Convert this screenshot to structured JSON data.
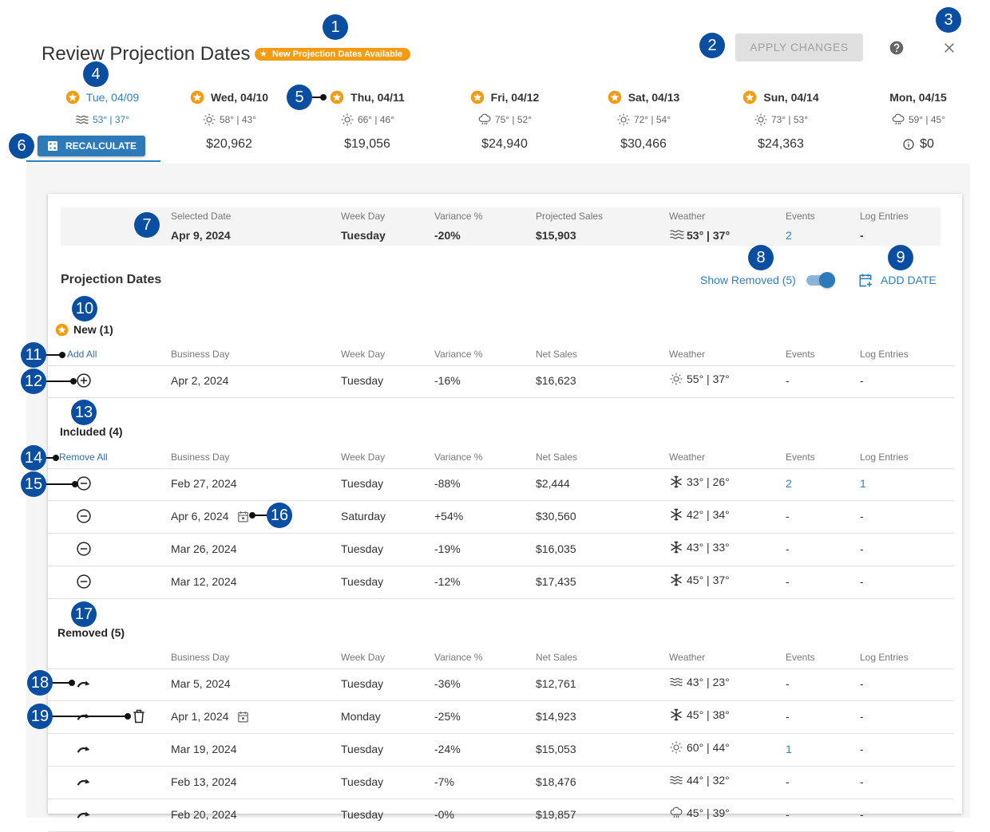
{
  "header": {
    "title": "Review Projection Dates",
    "badge": "New Projection Dates Available",
    "apply": "APPLY CHANGES"
  },
  "days": [
    {
      "label": "Tue, 04/09",
      "starred": true,
      "selected": true,
      "weather": "fog",
      "temp": "53° | 37°",
      "action": "RECALCULATE"
    },
    {
      "label": "Wed, 04/10",
      "starred": true,
      "weather": "sun",
      "temp": "58° | 43°",
      "sales": "$20,962"
    },
    {
      "label": "Thu, 04/11",
      "starred": true,
      "weather": "sun",
      "temp": "66° | 46°",
      "sales": "$19,056"
    },
    {
      "label": "Fri, 04/12",
      "starred": true,
      "weather": "rain",
      "temp": "75° | 52°",
      "sales": "$24,940"
    },
    {
      "label": "Sat, 04/13",
      "starred": true,
      "weather": "sun",
      "temp": "72° | 54°",
      "sales": "$30,466"
    },
    {
      "label": "Sun, 04/14",
      "starred": true,
      "weather": "sun",
      "temp": "73° | 53°",
      "sales": "$24,363"
    },
    {
      "label": "Mon, 04/15",
      "starred": false,
      "weather": "rain",
      "temp": "59° | 45°",
      "sales": "$0",
      "info": true
    }
  ],
  "summary": {
    "labels": [
      "Selected Date",
      "Week Day",
      "Variance %",
      "Projected Sales",
      "Weather",
      "Events",
      "Log Entries"
    ],
    "values": [
      "Apr 9, 2024",
      "Tuesday",
      "-20%",
      "$15,903",
      "53° | 37°",
      "2",
      "-"
    ],
    "weather": "fog"
  },
  "section": {
    "title": "Projection Dates",
    "show_removed": "Show Removed (5)",
    "add_date": "ADD DATE"
  },
  "columns": [
    "Business Day",
    "Week Day",
    "Variance %",
    "Net Sales",
    "Weather",
    "Events",
    "Log Entries"
  ],
  "groups": [
    {
      "title": "New (1)",
      "starred": true,
      "bulk_action": "Add All",
      "row_action": "add",
      "rows": [
        {
          "date": "Apr 2, 2024",
          "day": "Tuesday",
          "variance": "-16%",
          "sales": "$16,623",
          "weather": "sun",
          "temp": "55° | 37°",
          "events": "-",
          "log": "-"
        }
      ]
    },
    {
      "title": "Included (4)",
      "bulk_action": "Remove All",
      "row_action": "remove",
      "rows": [
        {
          "date": "Feb 27, 2024",
          "day": "Tuesday",
          "variance": "-88%",
          "sales": "$2,444",
          "weather": "snow",
          "temp": "33° | 26°",
          "events": "2",
          "log": "1"
        },
        {
          "date": "Apr 6, 2024",
          "calendar": true,
          "day": "Saturday",
          "variance": "+54%",
          "sales": "$30,560",
          "weather": "snow",
          "temp": "42° | 34°",
          "events": "-",
          "log": "-"
        },
        {
          "date": "Mar 26, 2024",
          "day": "Tuesday",
          "variance": "-19%",
          "sales": "$16,035",
          "weather": "snow",
          "temp": "43° | 33°",
          "events": "-",
          "log": "-"
        },
        {
          "date": "Mar 12, 2024",
          "day": "Tuesday",
          "variance": "-12%",
          "sales": "$17,435",
          "weather": "snow",
          "temp": "45° | 37°",
          "events": "-",
          "log": "-"
        }
      ]
    },
    {
      "title": "Removed (5)",
      "row_action": "restore",
      "rows": [
        {
          "date": "Mar 5, 2024",
          "day": "Tuesday",
          "variance": "-36%",
          "sales": "$12,761",
          "weather": "fog",
          "temp": "43° | 23°",
          "events": "-",
          "log": "-"
        },
        {
          "date": "Apr 1, 2024",
          "calendar": true,
          "trash": true,
          "day": "Monday",
          "variance": "-25%",
          "sales": "$14,923",
          "weather": "snow",
          "temp": "45° | 38°",
          "events": "-",
          "log": "-"
        },
        {
          "date": "Mar 19, 2024",
          "day": "Tuesday",
          "variance": "-24%",
          "sales": "$15,053",
          "weather": "sun",
          "temp": "60° | 44°",
          "events": "1",
          "log": "-"
        },
        {
          "date": "Feb 13, 2024",
          "day": "Tuesday",
          "variance": "-7%",
          "sales": "$18,476",
          "weather": "fog",
          "temp": "44° | 32°",
          "events": "-",
          "log": "-"
        },
        {
          "date": "Feb 20, 2024",
          "day": "Tuesday",
          "variance": "-0%",
          "sales": "$19,857",
          "weather": "rain",
          "temp": "45° | 39°",
          "events": "-",
          "log": "-"
        }
      ]
    }
  ],
  "callouts": [
    "1",
    "2",
    "3",
    "4",
    "5",
    "6",
    "7",
    "8",
    "9",
    "10",
    "11",
    "12",
    "13",
    "14",
    "15",
    "16",
    "17",
    "18",
    "19"
  ]
}
